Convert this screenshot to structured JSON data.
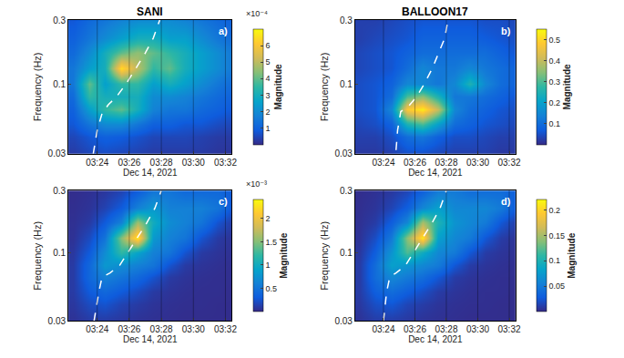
{
  "titles": [
    "SANI",
    "BALLOON17"
  ],
  "chart_data": [
    {
      "type": "heatmap",
      "label": "a)",
      "x_label": "Dec 14, 2021",
      "y_label": "Frequency (Hz)",
      "log": "y",
      "grid": true,
      "xlim": [
        202.2,
        212.4
      ],
      "xticks": [
        {
          "value": 204,
          "label": "03:24"
        },
        {
          "value": 206,
          "label": "03:26"
        },
        {
          "value": 208,
          "label": "03:28"
        },
        {
          "value": 210,
          "label": "03:30"
        },
        {
          "value": 212,
          "label": "03:32"
        }
      ],
      "ylim": [
        0.03,
        0.3
      ],
      "yticks": [
        0.03,
        0.1,
        0.3
      ],
      "x": [
        202.5,
        203.5,
        204.5,
        205.5,
        206.5,
        207.5,
        208.5,
        209.5,
        210.5,
        211.5,
        212.5
      ],
      "y": [
        0.03,
        0.04,
        0.05,
        0.065,
        0.08,
        0.1,
        0.13,
        0.17,
        0.22,
        0.3
      ],
      "z": [
        [
          3e-05,
          5e-05,
          6e-05,
          5e-05,
          4e-05,
          3e-05,
          3e-05,
          3e-05,
          3e-05,
          2e-05,
          2e-05
        ],
        [
          5e-05,
          8e-05,
          0.0001,
          9e-05,
          7e-05,
          5e-05,
          5e-05,
          5e-05,
          4e-05,
          3e-05,
          3e-05
        ],
        [
          8e-05,
          0.00015,
          0.0002,
          0.0002,
          0.00015,
          0.0001,
          0.0001,
          8e-05,
          8e-05,
          6e-05,
          5e-05
        ],
        [
          0.0001,
          0.00025,
          0.00035,
          0.0004,
          0.0003,
          0.00018,
          0.00015,
          0.00015,
          0.00012,
          0.0001,
          8e-05
        ],
        [
          0.00012,
          0.00035,
          0.0003,
          0.0003,
          0.0003,
          0.0002,
          0.0002,
          0.00018,
          0.00015,
          0.00012,
          0.0001
        ],
        [
          0.00015,
          0.0004,
          0.00025,
          0.00035,
          0.00035,
          0.00025,
          0.0003,
          0.00025,
          0.0002,
          0.00015,
          0.00012
        ],
        [
          0.00015,
          0.00025,
          0.0003,
          0.00065,
          0.0005,
          0.00035,
          0.0004,
          0.0003,
          0.00025,
          0.0002,
          0.00015
        ],
        [
          0.00012,
          0.0002,
          0.0003,
          0.0004,
          0.00045,
          0.0004,
          0.00035,
          0.0003,
          0.00025,
          0.0002,
          0.00015
        ],
        [
          0.0001,
          0.00015,
          0.0002,
          0.00025,
          0.0003,
          0.0003,
          0.00025,
          0.00025,
          0.0002,
          0.00015,
          0.00012
        ],
        [
          8e-05,
          0.00012,
          0.00015,
          0.00018,
          0.0002,
          0.0002,
          0.0002,
          0.00018,
          0.00015,
          0.00012,
          0.0001
        ]
      ],
      "colorbar": {
        "title": "Magnitude",
        "range": [
          0,
          0.0007
        ],
        "exponent_label": "×10⁻⁴",
        "ticks": [
          {
            "value": 0.0001,
            "label": "1"
          },
          {
            "value": 0.0002,
            "label": "2"
          },
          {
            "value": 0.0003,
            "label": "3"
          },
          {
            "value": 0.0004,
            "label": "4"
          },
          {
            "value": 0.0005,
            "label": "5"
          },
          {
            "value": 0.0006,
            "label": "6"
          }
        ]
      },
      "series": [
        {
          "type": "line",
          "color": "#ffffff",
          "line_style": "dash",
          "x": [
            203.75,
            204.0,
            204.3,
            204.7,
            205.2,
            205.8,
            206.4,
            207.0,
            207.5,
            207.9
          ],
          "values": [
            0.03,
            0.045,
            0.06,
            0.07,
            0.08,
            0.1,
            0.13,
            0.17,
            0.22,
            0.3
          ]
        }
      ]
    },
    {
      "type": "heatmap",
      "label": "b)",
      "x_label": "Dec 14, 2021",
      "y_label": "Frequency (Hz)",
      "log": "y",
      "grid": true,
      "xlim": [
        202.2,
        212.4
      ],
      "xticks": [
        {
          "value": 204,
          "label": "03:24"
        },
        {
          "value": 206,
          "label": "03:26"
        },
        {
          "value": 208,
          "label": "03:28"
        },
        {
          "value": 210,
          "label": "03:30"
        },
        {
          "value": 212,
          "label": "03:32"
        }
      ],
      "ylim": [
        0.03,
        0.3
      ],
      "yticks": [
        0.03,
        0.1,
        0.3
      ],
      "x": [
        202.5,
        203.5,
        204.5,
        205.5,
        206.5,
        207.5,
        208.5,
        209.5,
        210.5,
        211.5,
        212.5
      ],
      "y": [
        0.03,
        0.04,
        0.05,
        0.065,
        0.08,
        0.1,
        0.13,
        0.17,
        0.22,
        0.3
      ],
      "z": [
        [
          0.02,
          0.02,
          0.03,
          0.05,
          0.05,
          0.04,
          0.03,
          0.03,
          0.03,
          0.02,
          0.02
        ],
        [
          0.03,
          0.03,
          0.05,
          0.1,
          0.12,
          0.08,
          0.05,
          0.05,
          0.04,
          0.03,
          0.03
        ],
        [
          0.04,
          0.05,
          0.08,
          0.25,
          0.3,
          0.2,
          0.1,
          0.08,
          0.06,
          0.05,
          0.04
        ],
        [
          0.05,
          0.06,
          0.15,
          0.48,
          0.53,
          0.4,
          0.15,
          0.1,
          0.08,
          0.06,
          0.05
        ],
        [
          0.05,
          0.06,
          0.1,
          0.3,
          0.35,
          0.25,
          0.12,
          0.12,
          0.1,
          0.08,
          0.06
        ],
        [
          0.05,
          0.06,
          0.08,
          0.15,
          0.15,
          0.12,
          0.15,
          0.25,
          0.15,
          0.1,
          0.08
        ],
        [
          0.04,
          0.05,
          0.06,
          0.1,
          0.15,
          0.12,
          0.12,
          0.15,
          0.12,
          0.1,
          0.08
        ],
        [
          0.04,
          0.05,
          0.06,
          0.08,
          0.1,
          0.1,
          0.1,
          0.1,
          0.1,
          0.08,
          0.06
        ],
        [
          0.03,
          0.04,
          0.05,
          0.06,
          0.08,
          0.08,
          0.08,
          0.08,
          0.07,
          0.06,
          0.05
        ],
        [
          0.03,
          0.03,
          0.04,
          0.05,
          0.06,
          0.06,
          0.06,
          0.06,
          0.05,
          0.05,
          0.04
        ]
      ],
      "colorbar": {
        "title": "Magnitude",
        "range": [
          0,
          0.55
        ],
        "ticks": [
          0.1,
          0.2,
          0.3,
          0.4,
          0.5
        ]
      },
      "series": [
        {
          "type": "line",
          "color": "#ffffff",
          "line_style": "dash",
          "x": [
            204.8,
            204.9,
            205.1,
            205.6,
            206.1,
            206.6,
            207.1,
            207.5,
            207.9,
            208.1
          ],
          "values": [
            0.032,
            0.045,
            0.062,
            0.068,
            0.08,
            0.1,
            0.13,
            0.17,
            0.22,
            0.3
          ]
        }
      ]
    },
    {
      "type": "heatmap",
      "label": "c)",
      "x_label": "Dec 14, 2021",
      "y_label": "Frequency (Hz)",
      "log": "y",
      "grid": true,
      "xlim": [
        202.2,
        212.4
      ],
      "xticks": [
        {
          "value": 204,
          "label": "03:24"
        },
        {
          "value": 206,
          "label": "03:26"
        },
        {
          "value": 208,
          "label": "03:28"
        },
        {
          "value": 210,
          "label": "03:30"
        },
        {
          "value": 212,
          "label": "03:32"
        }
      ],
      "ylim": [
        0.03,
        0.3
      ],
      "yticks": [
        0.03,
        0.1,
        0.3
      ],
      "x": [
        202.5,
        203.5,
        204.5,
        205.5,
        206.5,
        207.5,
        208.5,
        209.5,
        210.5,
        211.5,
        212.5
      ],
      "y": [
        0.03,
        0.04,
        0.05,
        0.065,
        0.08,
        0.1,
        0.13,
        0.17,
        0.22,
        0.3
      ],
      "z": [
        [
          5e-05,
          0.0001,
          0.0001,
          8e-05,
          5e-05,
          4e-05,
          3e-05,
          2e-05,
          2e-05,
          2e-05,
          2e-05
        ],
        [
          8e-05,
          0.0002,
          0.00025,
          0.00015,
          0.0001,
          6e-05,
          4e-05,
          3e-05,
          3e-05,
          2e-05,
          2e-05
        ],
        [
          0.0001,
          0.0003,
          0.0004,
          0.0003,
          0.0002,
          0.0001,
          6e-05,
          4e-05,
          3e-05,
          3e-05,
          2e-05
        ],
        [
          0.0001,
          0.0004,
          0.0006,
          0.0005,
          0.0004,
          0.00025,
          0.0001,
          6e-05,
          4e-05,
          3e-05,
          3e-05
        ],
        [
          0.0001,
          0.0004,
          0.0008,
          0.0007,
          0.0006,
          0.0005,
          0.00025,
          0.0001,
          6e-05,
          4e-05,
          3e-05
        ],
        [
          8e-05,
          0.0003,
          0.0007,
          0.0012,
          0.0009,
          0.0006,
          0.0005,
          0.00025,
          0.0001,
          6e-05,
          4e-05
        ],
        [
          5e-05,
          0.0002,
          0.0005,
          0.0015,
          0.0023,
          0.0008,
          0.0006,
          0.0005,
          0.00025,
          0.0001,
          5e-05
        ],
        [
          4e-05,
          0.0001,
          0.0003,
          0.0006,
          0.0016,
          0.001,
          0.0007,
          0.0006,
          0.0005,
          0.00025,
          0.0001
        ],
        [
          3e-05,
          6e-05,
          0.00015,
          0.0003,
          0.0006,
          0.0008,
          0.0006,
          0.0006,
          0.0006,
          0.0005,
          0.00025
        ],
        [
          2e-05,
          4e-05,
          8e-05,
          0.00015,
          0.0003,
          0.0005,
          0.0005,
          0.0004,
          0.0004,
          0.0004,
          0.0003
        ]
      ],
      "colorbar": {
        "title": "Magnitude",
        "range": [
          0,
          0.0024
        ],
        "exponent_label": "×10⁻³",
        "ticks": [
          {
            "value": 0.0005,
            "label": "0.5"
          },
          {
            "value": 0.001,
            "label": "1"
          },
          {
            "value": 0.0015,
            "label": "1.5"
          },
          {
            "value": 0.002,
            "label": "2"
          }
        ]
      },
      "series": [
        {
          "type": "line",
          "color": "#ffffff",
          "line_style": "dash",
          "x": [
            203.8,
            204.1,
            204.3,
            204.8,
            205.4,
            205.9,
            206.5,
            207.1,
            207.6,
            208.0
          ],
          "values": [
            0.03,
            0.05,
            0.065,
            0.07,
            0.08,
            0.1,
            0.13,
            0.17,
            0.22,
            0.3
          ]
        }
      ]
    },
    {
      "type": "heatmap",
      "label": "d)",
      "x_label": "Dec 14, 2021",
      "y_label": "Frequency (Hz)",
      "log": "y",
      "grid": true,
      "xlim": [
        202.2,
        212.4
      ],
      "xticks": [
        {
          "value": 204,
          "label": "03:24"
        },
        {
          "value": 206,
          "label": "03:26"
        },
        {
          "value": 208,
          "label": "03:28"
        },
        {
          "value": 210,
          "label": "03:30"
        },
        {
          "value": 212,
          "label": "03:32"
        }
      ],
      "ylim": [
        0.03,
        0.3
      ],
      "yticks": [
        0.03,
        0.1,
        0.3
      ],
      "x": [
        202.5,
        203.5,
        204.5,
        205.5,
        206.5,
        207.5,
        208.5,
        209.5,
        210.5,
        211.5,
        212.5
      ],
      "y": [
        0.03,
        0.04,
        0.05,
        0.065,
        0.08,
        0.1,
        0.13,
        0.17,
        0.22,
        0.3
      ],
      "z": [
        [
          0.005,
          0.01,
          0.01,
          0.008,
          0.005,
          0.004,
          0.003,
          0.002,
          0.002,
          0.002,
          0.002
        ],
        [
          0.008,
          0.02,
          0.025,
          0.015,
          0.01,
          0.006,
          0.004,
          0.003,
          0.003,
          0.002,
          0.002
        ],
        [
          0.01,
          0.03,
          0.04,
          0.03,
          0.02,
          0.01,
          0.006,
          0.004,
          0.003,
          0.003,
          0.002
        ],
        [
          0.01,
          0.04,
          0.06,
          0.05,
          0.04,
          0.025,
          0.01,
          0.006,
          0.004,
          0.003,
          0.003
        ],
        [
          0.01,
          0.04,
          0.08,
          0.07,
          0.06,
          0.05,
          0.025,
          0.01,
          0.006,
          0.004,
          0.003
        ],
        [
          0.008,
          0.03,
          0.07,
          0.12,
          0.09,
          0.06,
          0.05,
          0.025,
          0.01,
          0.006,
          0.004
        ],
        [
          0.005,
          0.02,
          0.05,
          0.14,
          0.21,
          0.08,
          0.06,
          0.05,
          0.025,
          0.01,
          0.005
        ],
        [
          0.004,
          0.01,
          0.03,
          0.06,
          0.15,
          0.1,
          0.07,
          0.06,
          0.05,
          0.025,
          0.01
        ],
        [
          0.003,
          0.006,
          0.015,
          0.03,
          0.06,
          0.08,
          0.06,
          0.06,
          0.06,
          0.05,
          0.025
        ],
        [
          0.002,
          0.004,
          0.008,
          0.015,
          0.03,
          0.05,
          0.05,
          0.04,
          0.04,
          0.04,
          0.03
        ]
      ],
      "colorbar": {
        "title": "Magnitude",
        "range": [
          0,
          0.22
        ],
        "ticks": [
          0.05,
          0.1,
          0.15,
          0.2
        ]
      },
      "series": [
        {
          "type": "line",
          "color": "#ffffff",
          "line_style": "dash",
          "x": [
            204.0,
            204.2,
            204.4,
            204.8,
            205.4,
            205.9,
            206.5,
            207.1,
            207.6,
            208.0
          ],
          "values": [
            0.03,
            0.05,
            0.065,
            0.07,
            0.08,
            0.1,
            0.13,
            0.17,
            0.22,
            0.3
          ]
        }
      ]
    }
  ]
}
